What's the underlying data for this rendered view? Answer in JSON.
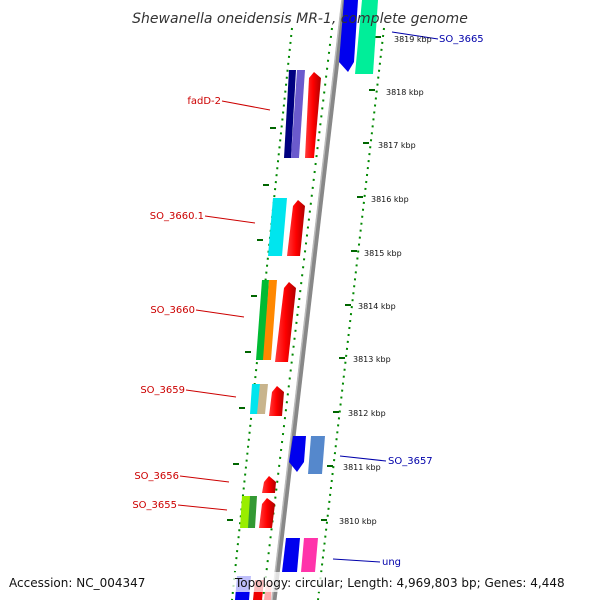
{
  "map": {
    "title": "Shewanella oneidensis MR-1, complete genome",
    "accession": "Accession: NC_004347",
    "topology": "Topology: circular; Length: 4,969,803 bp; Genes: 4,448",
    "ticks": [
      "3819 kbp",
      "3818 kbp",
      "3817 kbp",
      "3816 kbp",
      "3815 kbp",
      "3814 kbp",
      "3813 kbp",
      "3812 kbp",
      "3811 kbp",
      "3810 kbp"
    ],
    "genes": {
      "left": [
        {
          "label": "fadD-2",
          "color": "#cc0000"
        },
        {
          "label": "SO_3660.1",
          "color": "#cc0000"
        },
        {
          "label": "SO_3660",
          "color": "#cc0000"
        },
        {
          "label": "SO_3659",
          "color": "#cc0000"
        },
        {
          "label": "SO_3656",
          "color": "#cc0000"
        },
        {
          "label": "SO_3655",
          "color": "#cc0000"
        }
      ],
      "right": [
        {
          "label": "SO_3665",
          "color": "#0000aa"
        },
        {
          "label": "SO_3657",
          "color": "#0000aa"
        },
        {
          "label": "ung",
          "color": "#0000aa"
        }
      ]
    }
  }
}
